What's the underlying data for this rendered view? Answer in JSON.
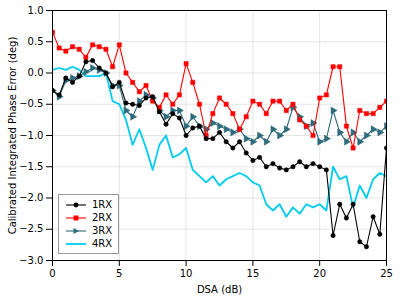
{
  "chart_data": {
    "type": "line",
    "xlabel": "DSA (dB)",
    "ylabel": "Calibrated Integrated Phase Error (deg)",
    "xlim": [
      0,
      25
    ],
    "ylim": [
      -3,
      1
    ],
    "xticks": [
      0,
      5,
      10,
      15,
      20,
      25
    ],
    "yticks": [
      {
        "value": -3,
        "label": "−3.0"
      },
      {
        "value": -2.5,
        "label": "−2.5"
      },
      {
        "value": -2,
        "label": "−2.0"
      },
      {
        "value": -1.5,
        "label": "−1.5"
      },
      {
        "value": -1,
        "label": "−1.0"
      },
      {
        "value": -0.5,
        "label": "−0.5"
      },
      {
        "value": 0,
        "label": "0.0"
      },
      {
        "value": 0.5,
        "label": "0.5"
      },
      {
        "value": 1,
        "label": "1.0"
      }
    ],
    "grid": true,
    "legend": "lower left",
    "x": [
      0,
      0.5,
      1,
      1.5,
      2,
      2.5,
      3,
      3.5,
      4,
      4.5,
      5,
      5.5,
      6,
      6.5,
      7,
      7.5,
      8,
      8.5,
      9,
      9.5,
      10,
      10.5,
      11,
      11.5,
      12,
      12.5,
      13,
      13.5,
      14,
      14.5,
      15,
      15.5,
      16,
      16.5,
      17,
      17.5,
      18,
      18.5,
      19,
      19.5,
      20,
      20.5,
      21,
      21.5,
      22,
      22.5,
      23,
      23.5,
      24,
      24.5,
      25
    ],
    "series": [
      {
        "name": "1RX",
        "color": "#000000",
        "marker": "circle",
        "values": [
          -0.28,
          -0.35,
          -0.08,
          -0.15,
          -0.05,
          0.18,
          0.2,
          0.08,
          0.0,
          -0.22,
          -0.15,
          -0.48,
          -0.5,
          -0.52,
          -0.4,
          -0.38,
          -0.62,
          -0.82,
          -0.65,
          -0.72,
          -1.0,
          -0.88,
          -0.85,
          -1.05,
          -1.05,
          -0.95,
          -1.1,
          -1.2,
          -1.1,
          -1.28,
          -1.4,
          -1.35,
          -1.5,
          -1.45,
          -1.52,
          -1.55,
          -1.5,
          -1.42,
          -1.5,
          -1.45,
          -1.5,
          -1.55,
          -2.6,
          -2.1,
          -2.32,
          -2.1,
          -2.7,
          -2.78,
          -2.3,
          -2.58,
          -1.2
        ]
      },
      {
        "name": "2RX",
        "color": "#ff0000",
        "marker": "square",
        "values": [
          0.65,
          0.4,
          0.35,
          0.42,
          0.38,
          0.25,
          0.45,
          0.42,
          0.38,
          0.1,
          0.45,
          0.0,
          -0.15,
          -0.3,
          -0.2,
          -0.45,
          -0.55,
          -0.35,
          -0.5,
          -0.35,
          0.15,
          -0.15,
          -0.5,
          -1.0,
          -0.65,
          -0.4,
          -0.5,
          -0.65,
          -0.9,
          -0.7,
          -0.45,
          -0.5,
          -0.65,
          -0.45,
          -0.45,
          -0.6,
          -0.5,
          -0.75,
          -0.85,
          -1.0,
          -0.4,
          -0.35,
          0.1,
          0.1,
          -0.85,
          -1.2,
          -0.6,
          -0.65,
          -0.65,
          -0.55,
          -0.45
        ]
      },
      {
        "name": "3RX",
        "color": "#2e6b7a",
        "marker": "triangle-right",
        "values": [
          -0.28,
          -0.38,
          -0.12,
          -0.08,
          -0.05,
          0.02,
          0.08,
          0.05,
          0.0,
          -0.2,
          -0.2,
          -0.6,
          -0.7,
          -0.45,
          -0.35,
          -0.4,
          -0.6,
          -0.7,
          -0.6,
          -0.6,
          -0.85,
          -0.7,
          -0.85,
          -0.9,
          -0.8,
          -0.85,
          -0.9,
          -0.95,
          -0.9,
          -1.05,
          -1.1,
          -1.0,
          -1.1,
          -0.9,
          -1.0,
          -0.9,
          -0.55,
          -0.7,
          -0.85,
          -0.8,
          -1.1,
          -1.05,
          -0.6,
          -0.95,
          -1.1,
          -0.95,
          -1.1,
          -1.0,
          -0.9,
          -0.95,
          -0.85
        ]
      },
      {
        "name": "4RX",
        "color": "#00ccee",
        "marker": "none",
        "values": [
          0.05,
          0.08,
          0.05,
          0.1,
          0.05,
          -0.05,
          -0.05,
          -0.05,
          0.0,
          -0.45,
          -0.5,
          -0.75,
          -1.15,
          -0.9,
          -1.2,
          -1.55,
          -1.15,
          -1.0,
          -1.35,
          -1.3,
          -1.2,
          -1.55,
          -1.65,
          -1.75,
          -1.65,
          -1.8,
          -1.7,
          -1.65,
          -1.6,
          -1.65,
          -1.75,
          -1.8,
          -2.1,
          -2.2,
          -2.1,
          -2.3,
          -2.15,
          -2.25,
          -2.1,
          -2.15,
          -2.1,
          -2.2,
          -1.5,
          -1.7,
          -1.65,
          -2.15,
          -1.8,
          -2.0,
          -1.7,
          -1.6,
          -1.65
        ]
      }
    ]
  }
}
